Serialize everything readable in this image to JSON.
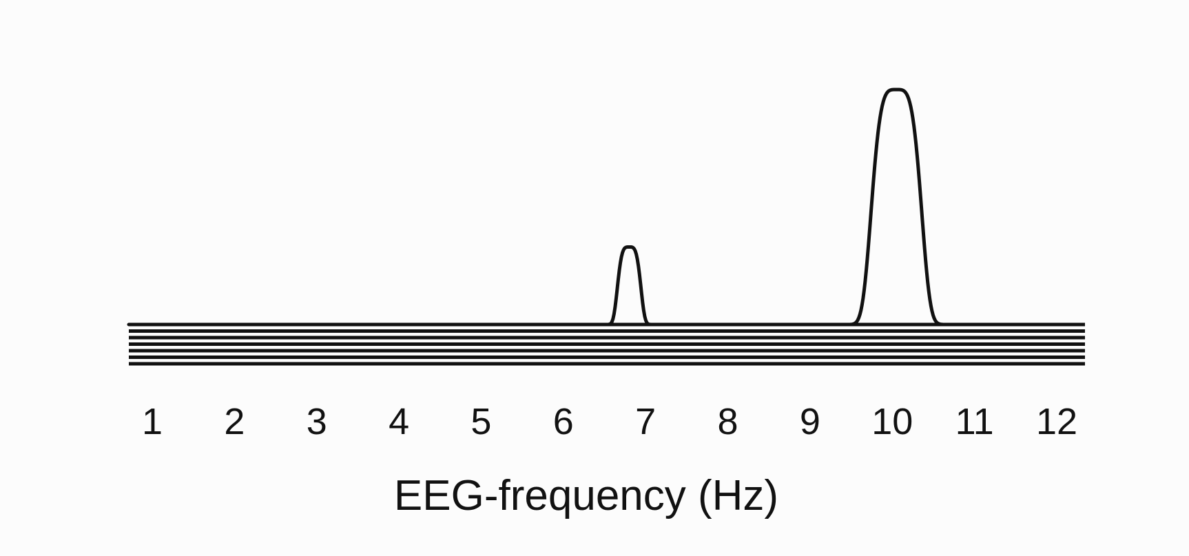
{
  "chart_data": {
    "type": "line",
    "xlabel": "EEG-frequency (Hz)",
    "ylabel": "",
    "title": "",
    "x_ticks": [
      "1",
      "2",
      "3",
      "4",
      "5",
      "6",
      "7",
      "8",
      "9",
      "10",
      "11",
      "12"
    ],
    "xlim": [
      0.7,
      12.3
    ],
    "ylim": [
      0,
      1
    ],
    "baseline_count": 7,
    "peaks": [
      {
        "center_hz": 6.8,
        "relative_height": 0.33
      },
      {
        "center_hz": 10.05,
        "relative_height": 1.0
      }
    ],
    "grid": false,
    "legend": "none",
    "colors": {
      "line": "#111111",
      "background": "#fcfcfc"
    }
  }
}
